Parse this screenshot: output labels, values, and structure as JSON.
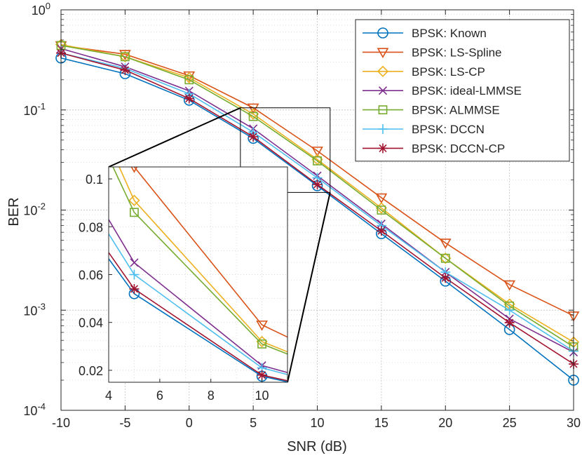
{
  "chart_data": [
    {
      "type": "line",
      "xlabel": "SNR (dB)",
      "ylabel": "BER",
      "yscale": "log",
      "xlim": [
        -10,
        30
      ],
      "ylim": [
        0.0001,
        1
      ],
      "x_ticks": [
        -10,
        -5,
        0,
        5,
        10,
        15,
        20,
        25,
        30
      ],
      "x_tick_labels": [
        "-10",
        "-5",
        "0",
        "5",
        "10",
        "15",
        "20",
        "25",
        "30"
      ],
      "y_ticks": [
        {
          "value": 1,
          "base": "10",
          "exp": "0"
        },
        {
          "value": 0.1,
          "base": "10",
          "exp": "-1"
        },
        {
          "value": 0.01,
          "base": "10",
          "exp": "-2"
        },
        {
          "value": 0.001,
          "base": "10",
          "exp": "-3"
        },
        {
          "value": 0.0001,
          "base": "10",
          "exp": "-4"
        }
      ],
      "grid": true,
      "legend_position": "top-right",
      "x": [
        -10,
        -5,
        0,
        5,
        10,
        15,
        20,
        25,
        30
      ],
      "series": [
        {
          "name": "BPSK: Known",
          "color": "#0072BD",
          "marker": "circle",
          "values": [
            0.33,
            0.23,
            0.125,
            0.052,
            0.0175,
            0.0058,
            0.00195,
            0.00064,
            0.0002
          ]
        },
        {
          "name": "BPSK: LS-Spline",
          "color": "#D95319",
          "marker": "triangle-down",
          "values": [
            0.44,
            0.36,
            0.22,
            0.105,
            0.039,
            0.0133,
            0.0047,
            0.0018,
            0.00088
          ]
        },
        {
          "name": "BPSK: LS-CP",
          "color": "#EDB120",
          "marker": "diamond",
          "values": [
            0.45,
            0.34,
            0.21,
            0.091,
            0.032,
            0.0105,
            0.0033,
            0.00115,
            0.00048
          ]
        },
        {
          "name": "BPSK: ideal-LMMSE",
          "color": "#7E2F8E",
          "marker": "x",
          "values": [
            0.41,
            0.27,
            0.155,
            0.065,
            0.022,
            0.0073,
            0.0024,
            0.00082,
            0.00038
          ]
        },
        {
          "name": "BPSK: ALMMSE",
          "color": "#77AC30",
          "marker": "square",
          "values": [
            0.44,
            0.34,
            0.2,
            0.086,
            0.031,
            0.01,
            0.0033,
            0.0011,
            0.00043
          ]
        },
        {
          "name": "BPSK: DCCN",
          "color": "#4DBEEE",
          "marker": "plus",
          "values": [
            0.37,
            0.26,
            0.145,
            0.06,
            0.021,
            0.007,
            0.0024,
            0.001,
            0.00039
          ]
        },
        {
          "name": "BPSK: DCCN-CP",
          "color": "#A2142F",
          "marker": "asterisk",
          "values": [
            0.37,
            0.25,
            0.13,
            0.054,
            0.018,
            0.0062,
            0.0021,
            0.00075,
            0.00029
          ]
        }
      ]
    },
    {
      "type": "line",
      "title": "",
      "xlim": [
        4,
        11
      ],
      "ylim": [
        0.015,
        0.105
      ],
      "x_ticks": [
        4,
        6,
        8,
        10
      ],
      "x_tick_labels": [
        "4",
        "6",
        "8",
        "10"
      ],
      "y_ticks": [
        0.02,
        0.04,
        0.06,
        0.08,
        0.1
      ],
      "y_tick_labels": [
        "0.02",
        "0.04",
        "0.06",
        "0.08",
        "0.1"
      ],
      "grid": true,
      "series": [
        {
          "name": "BPSK: Known",
          "x": [
            5,
            10
          ],
          "values": [
            0.052,
            0.0175
          ]
        },
        {
          "name": "BPSK: LS-Spline",
          "x": [
            5,
            10
          ],
          "values": [
            0.105,
            0.039
          ]
        },
        {
          "name": "BPSK: LS-CP",
          "x": [
            5,
            10
          ],
          "values": [
            0.091,
            0.032
          ]
        },
        {
          "name": "BPSK: ideal-LMMSE",
          "x": [
            5,
            10
          ],
          "values": [
            0.065,
            0.022
          ]
        },
        {
          "name": "BPSK: ALMMSE",
          "x": [
            5,
            10
          ],
          "values": [
            0.086,
            0.031
          ]
        },
        {
          "name": "BPSK: DCCN",
          "x": [
            5,
            10
          ],
          "values": [
            0.06,
            0.021
          ]
        },
        {
          "name": "BPSK: DCCN-CP",
          "x": [
            5,
            10
          ],
          "values": [
            0.054,
            0.018
          ]
        }
      ]
    }
  ]
}
